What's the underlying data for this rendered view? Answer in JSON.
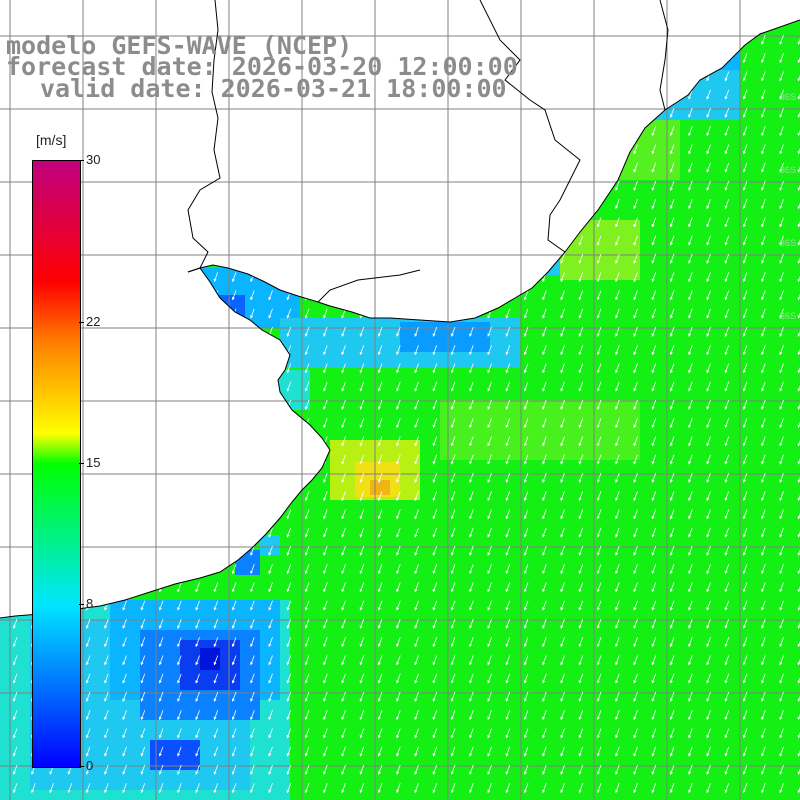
{
  "title": {
    "model_line": "modelo GEFS-WAVE (NCEP)",
    "forecast_line": "forecast date: 2026-03-20 12:00:00",
    "valid_line": "valid date: 2026-03-21 18:00:00"
  },
  "colorbar": {
    "units": "[m/s]",
    "min": 0,
    "max": 30,
    "ticks": [
      {
        "value": 30,
        "label": "30"
      },
      {
        "value": 22,
        "label": "22"
      },
      {
        "value": 15,
        "label": "15"
      },
      {
        "value": 8,
        "label": "8"
      },
      {
        "value": 0,
        "label": "0"
      }
    ]
  },
  "colors": {
    "land": "#ffffff",
    "coastline": "#000000",
    "grid": "#808080",
    "arrows": "#ffffff",
    "title": "#8c8c8c"
  },
  "map": {
    "field": "wind speed",
    "arrow_direction": "southwest"
  }
}
